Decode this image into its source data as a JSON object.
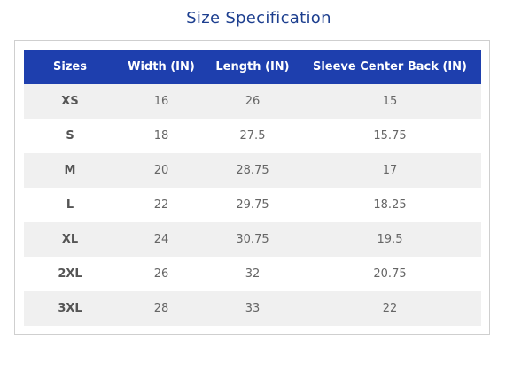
{
  "title": "Size Specification",
  "table": {
    "header": [
      "Sizes",
      "Width (IN)",
      "Length (IN)",
      "Sleeve Center Back (IN)"
    ],
    "rows": [
      [
        "XS",
        16,
        26,
        15
      ],
      [
        "S",
        18,
        27.5,
        15.75
      ],
      [
        "M",
        20,
        28.75,
        17
      ],
      [
        "L",
        22,
        29.75,
        18.25
      ],
      [
        "XL",
        24,
        30.75,
        19.5
      ],
      [
        "2XL",
        26,
        32,
        20.75
      ],
      [
        "3XL",
        28,
        33,
        22
      ]
    ]
  }
}
